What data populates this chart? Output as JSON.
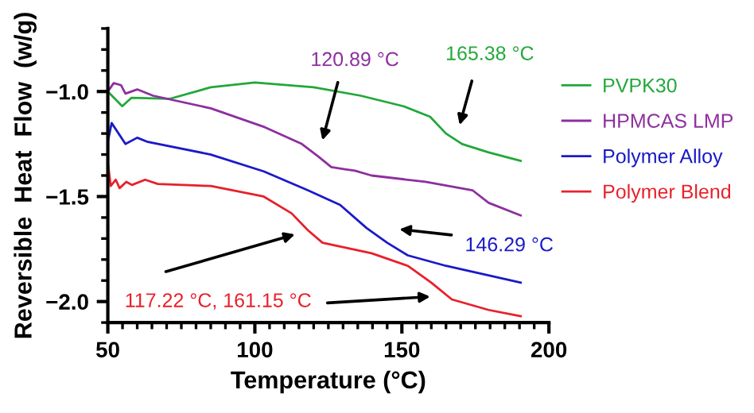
{
  "chart_data": {
    "type": "line",
    "xlabel": "Temperature (°C)",
    "ylabel": "Reversible  Heat  Flow  (w/g)",
    "xlim": [
      50,
      200
    ],
    "ylim": [
      -2.1,
      -0.7
    ],
    "xticks": [
      50,
      {
        "value": 55,
        "label": null
      },
      {
        "value": 60,
        "label": null
      },
      {
        "value": 65,
        "label": null
      },
      {
        "value": 70,
        "label": null
      },
      {
        "value": 75,
        "label": null
      },
      {
        "value": 80,
        "label": null
      },
      {
        "value": 85,
        "label": null
      },
      {
        "value": 90,
        "label": null
      },
      {
        "value": 95,
        "label": null
      },
      100,
      {
        "value": 105,
        "label": null
      },
      {
        "value": 110,
        "label": null
      },
      {
        "value": 115,
        "label": null
      },
      {
        "value": 120,
        "label": null
      },
      {
        "value": 125,
        "label": null
      },
      {
        "value": 130,
        "label": null
      },
      {
        "value": 135,
        "label": null
      },
      {
        "value": 140,
        "label": null
      },
      {
        "value": 145,
        "label": null
      },
      150,
      {
        "value": 155,
        "label": null
      },
      {
        "value": 160,
        "label": null
      },
      {
        "value": 165,
        "label": null
      },
      {
        "value": 170,
        "label": null
      },
      {
        "value": 175,
        "label": null
      },
      {
        "value": 180,
        "label": null
      },
      {
        "value": 185,
        "label": null
      },
      {
        "value": 190,
        "label": null
      },
      {
        "value": 195,
        "label": null
      },
      200
    ],
    "yticks": [
      {
        "value": -2.1,
        "label": null
      },
      {
        "value": -2.0,
        "label": "−2.0"
      },
      {
        "value": -1.9,
        "label": null
      },
      {
        "value": -1.8,
        "label": null
      },
      {
        "value": -1.7,
        "label": null
      },
      {
        "value": -1.6,
        "label": null
      },
      {
        "value": -1.5,
        "label": "−1.5"
      },
      {
        "value": -1.4,
        "label": null
      },
      {
        "value": -1.3,
        "label": null
      },
      {
        "value": -1.2,
        "label": null
      },
      {
        "value": -1.1,
        "label": null
      },
      {
        "value": -1.0,
        "label": "−1.0"
      },
      {
        "value": -0.9,
        "label": null
      },
      {
        "value": -0.8,
        "label": null
      },
      {
        "value": -0.7,
        "label": null
      }
    ],
    "grid": false,
    "legend": "right",
    "marker": "none",
    "line_style": "solid",
    "series": [
      {
        "name": "PVPK30",
        "color": "#22a83a",
        "x": [
          50,
          54.9,
          58,
          71,
          85,
          100,
          120,
          136,
          150.5,
          159.6,
          165,
          170.5,
          179.5,
          190.4
        ],
        "values": [
          -1.0,
          -1.07,
          -1.03,
          -1.035,
          -0.98,
          -0.957,
          -0.98,
          -1.02,
          -1.07,
          -1.12,
          -1.2,
          -1.25,
          -1.29,
          -1.33
        ]
      },
      {
        "name": "HPMCAS LMP",
        "color": "#8e2f9e",
        "x": [
          50,
          52,
          54.5,
          56,
          60,
          65.4,
          85,
          103.4,
          116,
          121.6,
          126,
          130.6,
          134,
          139.7,
          158,
          174,
          179.5,
          190.4
        ],
        "values": [
          -1.0,
          -0.96,
          -0.97,
          -1.01,
          -0.99,
          -1.02,
          -1.08,
          -1.17,
          -1.25,
          -1.31,
          -1.36,
          -1.37,
          -1.377,
          -1.4,
          -1.43,
          -1.47,
          -1.53,
          -1.59
        ]
      },
      {
        "name": "Polymer Alloy",
        "color": "#1a1ac8",
        "x": [
          50,
          51.3,
          56,
          60,
          63.6,
          85,
          103,
          118,
          129,
          138,
          145,
          152,
          165,
          190.4
        ],
        "values": [
          -1.24,
          -1.15,
          -1.25,
          -1.22,
          -1.24,
          -1.3,
          -1.38,
          -1.47,
          -1.54,
          -1.65,
          -1.72,
          -1.78,
          -1.83,
          -1.91
        ]
      },
      {
        "name": "Polymer Blend",
        "color": "#e8202a",
        "x": [
          50,
          51,
          52.7,
          54,
          56.3,
          58.2,
          62.7,
          67,
          85,
          103,
          112.5,
          118,
          123,
          139.7,
          152,
          160,
          167,
          179.5,
          190.4
        ],
        "values": [
          -1.34,
          -1.45,
          -1.42,
          -1.46,
          -1.43,
          -1.445,
          -1.42,
          -1.44,
          -1.45,
          -1.5,
          -1.58,
          -1.66,
          -1.72,
          -1.77,
          -1.83,
          -1.91,
          -1.99,
          -2.04,
          -2.07
        ]
      }
    ],
    "annotations": [
      "120.89 °C",
      "165.38 °C",
      "146.29 °C",
      "117.22 °C, 161.15 °C"
    ]
  }
}
